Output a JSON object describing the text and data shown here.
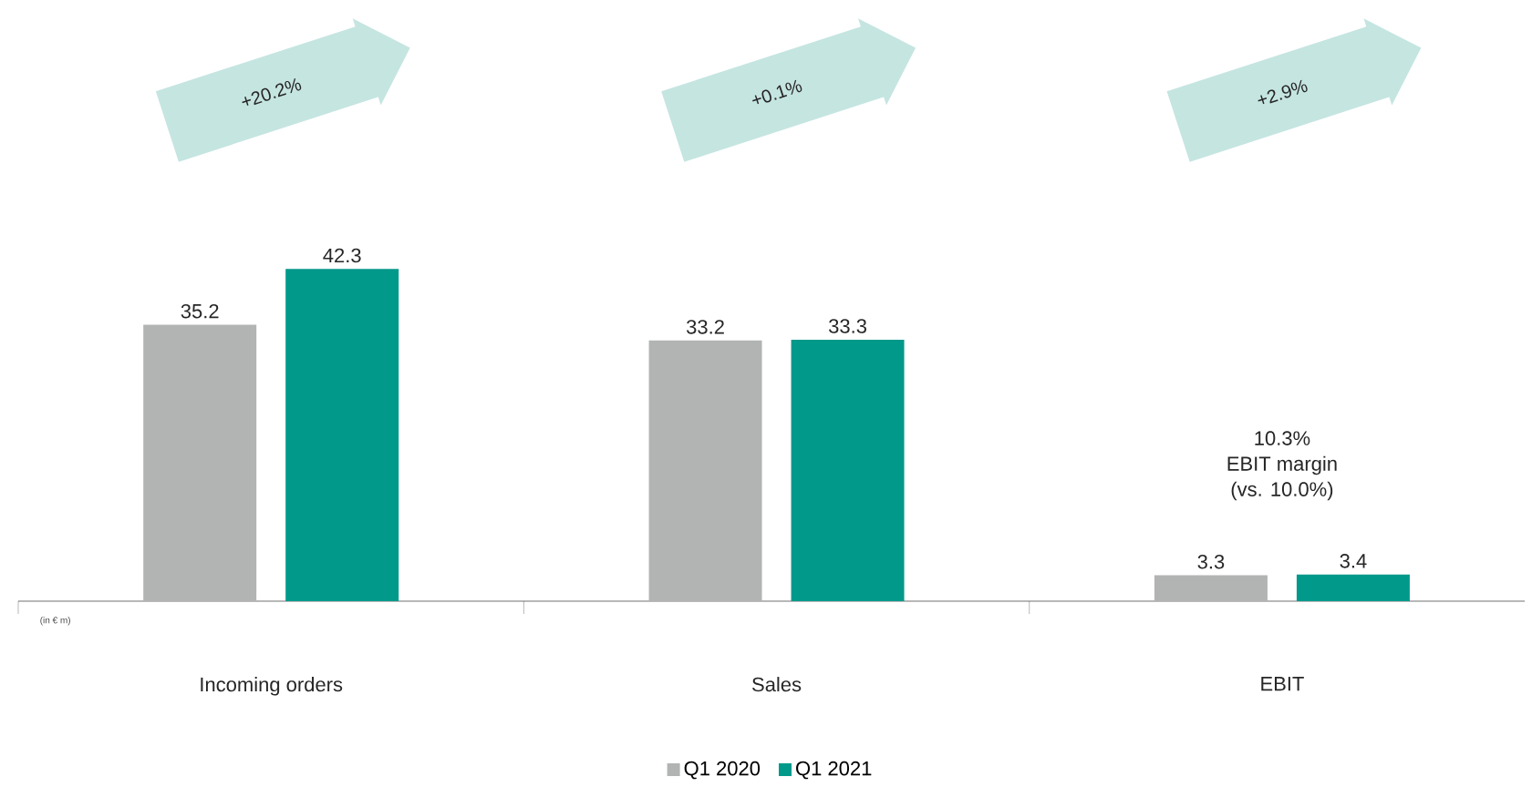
{
  "chart_data": {
    "type": "bar",
    "categories": [
      "Incoming orders",
      "Sales",
      "EBIT"
    ],
    "series": [
      {
        "name": "Q1 2020",
        "color": "#b2b4b3",
        "values": [
          35.2,
          33.2,
          3.3
        ]
      },
      {
        "name": "Q1 2021",
        "color": "#00998a",
        "values": [
          42.3,
          33.3,
          3.4
        ]
      }
    ],
    "data_labels": true,
    "legend": "bottom",
    "grid": false,
    "annotations": [
      "+20.2%",
      "+0.1%",
      "+2.9%",
      "10.3%",
      "EBIT margin",
      "(vs. 10.0%)",
      "(in € m)"
    ]
  }
}
